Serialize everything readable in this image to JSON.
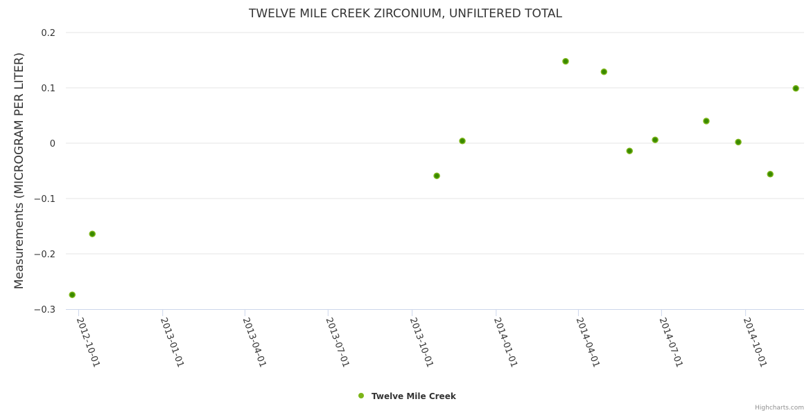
{
  "chart_data": {
    "type": "scatter",
    "title": "TWELVE MILE CREEK ZIRCONIUM, UNFILTERED TOTAL",
    "xlabel": "",
    "ylabel": "Measurements (MICROGRAM PER LITER)",
    "ylim": [
      -0.3,
      0.2
    ],
    "yticks": [
      0.2,
      0.1,
      0,
      -0.1,
      -0.2,
      -0.3
    ],
    "ytick_labels": [
      "0.2",
      "0.1",
      "0",
      "−0.1",
      "−0.2",
      "−0.3"
    ],
    "xlim": [
      "2012-09-17",
      "2014-12-04"
    ],
    "xticks": [
      "2012-10-01",
      "2013-01-01",
      "2013-04-01",
      "2013-07-01",
      "2013-10-01",
      "2014-01-01",
      "2014-04-01",
      "2014-07-01",
      "2014-10-01"
    ],
    "grid": true,
    "legend_placement": "bottom-center",
    "series": [
      {
        "name": "Twelve Mile Creek",
        "color": "#7cb518",
        "points": [
          {
            "x": "2012-09-24",
            "y": -0.274
          },
          {
            "x": "2012-10-16",
            "y": -0.164
          },
          {
            "x": "2013-10-28",
            "y": -0.059
          },
          {
            "x": "2013-11-25",
            "y": 0.004
          },
          {
            "x": "2014-03-18",
            "y": 0.148
          },
          {
            "x": "2014-04-29",
            "y": 0.129
          },
          {
            "x": "2014-05-27",
            "y": -0.014
          },
          {
            "x": "2014-06-24",
            "y": 0.006
          },
          {
            "x": "2014-08-19",
            "y": 0.04
          },
          {
            "x": "2014-09-23",
            "y": 0.002
          },
          {
            "x": "2014-10-28",
            "y": -0.056
          },
          {
            "x": "2014-11-25",
            "y": 0.099
          }
        ]
      }
    ]
  },
  "credit": "Highcharts.com"
}
